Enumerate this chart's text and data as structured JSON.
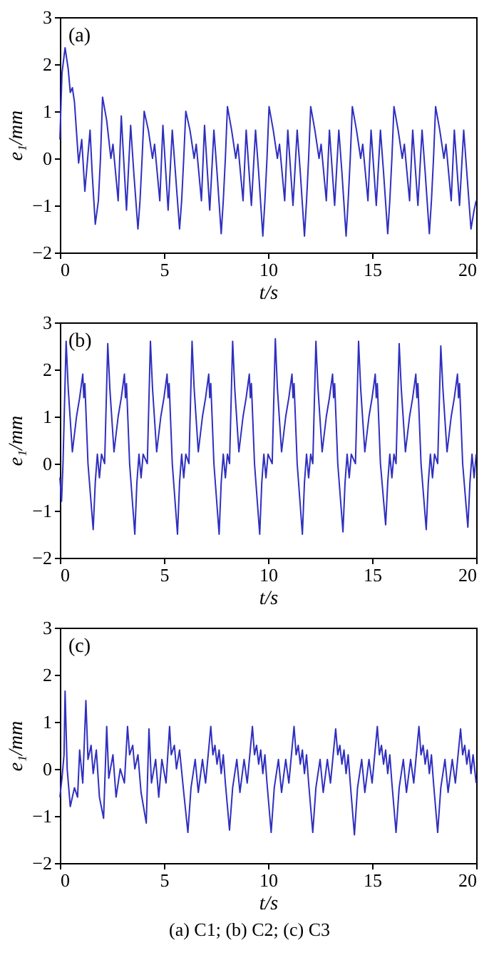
{
  "chart_data": [
    {
      "type": "line",
      "xlabel": "t/s",
      "ylabel": "e₁/mm",
      "annotations": [
        "(a)"
      ],
      "xlim": [
        0,
        20
      ],
      "ylim": [
        -2,
        3
      ],
      "xticks": [
        0,
        5,
        10,
        15,
        20
      ],
      "yticks": [
        -2,
        -1,
        0,
        1,
        2,
        3
      ],
      "grid": false,
      "x": [
        0,
        0.1,
        0.25,
        0.4,
        0.5,
        0.6,
        0.7,
        0.9,
        1.05,
        1.2,
        1.45,
        1.55,
        1.7,
        1.85,
        1.95,
        2.05,
        2.25,
        2.45,
        2.55,
        2.8,
        2.95,
        3.2,
        3.4,
        3.55,
        3.75,
        3.85,
        3.95,
        4.05,
        4.25,
        4.45,
        4.55,
        4.8,
        4.95,
        5.2,
        5.4,
        5.55,
        5.75,
        5.85,
        5.95,
        6.05,
        6.25,
        6.45,
        6.55,
        6.8,
        6.95,
        7.2,
        7.4,
        7.55,
        7.75,
        7.85,
        7.95,
        8.05,
        8.25,
        8.45,
        8.55,
        8.8,
        8.95,
        9.2,
        9.4,
        9.55,
        9.75,
        9.85,
        9.95,
        10.05,
        10.25,
        10.45,
        10.55,
        10.8,
        10.95,
        11.2,
        11.4,
        11.55,
        11.75,
        11.85,
        11.95,
        12.05,
        12.25,
        12.45,
        12.55,
        12.8,
        12.95,
        13.2,
        13.4,
        13.55,
        13.75,
        13.85,
        13.95,
        14.05,
        14.25,
        14.45,
        14.55,
        14.8,
        14.95,
        15.2,
        15.4,
        15.55,
        15.75,
        15.85,
        15.95,
        16.05,
        16.25,
        16.45,
        16.55,
        16.8,
        16.95,
        17.2,
        17.4,
        17.55,
        17.75,
        17.85,
        17.95,
        18.05,
        18.25,
        18.45,
        18.55,
        18.8,
        18.95,
        19.2,
        19.4,
        19.55,
        19.75,
        19.9,
        20
      ],
      "series": [
        {
          "color": "#2f2fc0",
          "values": [
            0.4,
            1.8,
            2.35,
            1.9,
            1.4,
            1.5,
            1.2,
            -0.1,
            0.4,
            -0.7,
            0.6,
            -0.3,
            -1.4,
            -0.9,
            0,
            1.3,
            0.8,
            0,
            0.3,
            -0.9,
            0.9,
            -1.1,
            0.7,
            -0.3,
            -1.5,
            -0.9,
            0,
            1.0,
            0.6,
            0,
            0.3,
            -0.9,
            0.7,
            -1.1,
            0.6,
            -0.3,
            -1.5,
            -0.9,
            0,
            1.0,
            0.6,
            0,
            0.3,
            -0.9,
            0.7,
            -1.1,
            0.6,
            -0.3,
            -1.6,
            -0.9,
            0,
            1.1,
            0.6,
            0,
            0.3,
            -0.9,
            0.6,
            -1.0,
            0.6,
            -0.3,
            -1.65,
            -0.9,
            0,
            1.1,
            0.6,
            0,
            0.3,
            -0.9,
            0.6,
            -1.0,
            0.6,
            -0.3,
            -1.65,
            -0.9,
            0,
            1.1,
            0.6,
            0,
            0.3,
            -0.9,
            0.6,
            -1.0,
            0.6,
            -0.3,
            -1.65,
            -0.9,
            0,
            1.1,
            0.6,
            0,
            0.3,
            -0.9,
            0.6,
            -1.0,
            0.6,
            -0.3,
            -1.6,
            -0.9,
            0,
            1.1,
            0.6,
            0,
            0.3,
            -0.9,
            0.6,
            -1.0,
            0.6,
            -0.3,
            -1.6,
            -0.9,
            0,
            1.1,
            0.6,
            0,
            0.3,
            -0.9,
            0.6,
            -1.0,
            0.6,
            -0.3,
            -1.5,
            -1.1,
            -0.9
          ]
        }
      ]
    },
    {
      "type": "line",
      "xlabel": "t/s",
      "ylabel": "e₁/mm",
      "annotations": [
        "(b)"
      ],
      "xlim": [
        0,
        20
      ],
      "ylim": [
        -2,
        3
      ],
      "xticks": [
        0,
        5,
        10,
        15,
        20
      ],
      "yticks": [
        -2,
        -1,
        0,
        1,
        2,
        3
      ],
      "grid": false,
      "x": [
        0,
        0.08,
        0.15,
        0.3,
        0.4,
        0.6,
        0.8,
        0.95,
        1.1,
        1.15,
        1.2,
        1.35,
        1.6,
        1.7,
        1.8,
        1.9,
        2.0,
        2.15,
        2.3,
        2.4,
        2.6,
        2.8,
        2.95,
        3.1,
        3.15,
        3.2,
        3.35,
        3.6,
        3.7,
        3.8,
        3.9,
        4.0,
        4.2,
        4.35,
        4.45,
        4.65,
        4.85,
        5.0,
        5.15,
        5.2,
        5.25,
        5.4,
        5.65,
        5.75,
        5.85,
        5.95,
        6.05,
        6.2,
        6.35,
        6.45,
        6.65,
        6.85,
        7.0,
        7.15,
        7.2,
        7.25,
        7.4,
        7.65,
        7.75,
        7.85,
        7.95,
        8.05,
        8.15,
        8.3,
        8.4,
        8.6,
        8.8,
        8.95,
        9.1,
        9.15,
        9.2,
        9.35,
        9.6,
        9.7,
        9.8,
        9.9,
        10.0,
        10.2,
        10.35,
        10.45,
        10.65,
        10.85,
        11.0,
        11.15,
        11.2,
        11.25,
        11.4,
        11.65,
        11.75,
        11.85,
        11.95,
        12.05,
        12.15,
        12.3,
        12.4,
        12.6,
        12.8,
        12.95,
        13.1,
        13.15,
        13.2,
        13.35,
        13.6,
        13.7,
        13.8,
        13.9,
        14.0,
        14.2,
        14.35,
        14.45,
        14.65,
        14.85,
        15.0,
        15.15,
        15.2,
        15.25,
        15.4,
        15.65,
        15.75,
        15.85,
        15.95,
        16.05,
        16.15,
        16.3,
        16.4,
        16.6,
        16.8,
        16.95,
        17.1,
        17.15,
        17.2,
        17.35,
        17.6,
        17.7,
        17.8,
        17.9,
        18.0,
        18.15,
        18.3,
        18.4,
        18.6,
        18.8,
        18.95,
        19.1,
        19.15,
        19.2,
        19.35,
        19.6,
        19.7,
        19.8,
        19.9,
        20.0
      ],
      "series": [
        {
          "color": "#2f2fc0",
          "values": [
            -0.3,
            -0.8,
            0,
            2.6,
            1.6,
            0.25,
            1.0,
            1.4,
            1.9,
            1.4,
            1.7,
            0,
            -1.4,
            -0.4,
            0.2,
            -0.3,
            0.2,
            0,
            2.55,
            1.6,
            0.25,
            1.0,
            1.4,
            1.9,
            1.4,
            1.7,
            0,
            -1.5,
            -0.4,
            0.2,
            -0.3,
            0.2,
            0,
            2.6,
            1.6,
            0.25,
            1.0,
            1.4,
            1.9,
            1.4,
            1.7,
            0,
            -1.5,
            -0.4,
            0.2,
            -0.3,
            0.2,
            0,
            2.6,
            1.6,
            0.25,
            1.0,
            1.4,
            1.9,
            1.4,
            1.7,
            0,
            -1.5,
            -0.4,
            0.2,
            -0.3,
            0.2,
            0,
            2.6,
            1.6,
            0.25,
            1.0,
            1.4,
            1.9,
            1.4,
            1.7,
            0,
            -1.5,
            -0.4,
            0.2,
            -0.3,
            0.2,
            0,
            2.65,
            1.6,
            0.25,
            1.0,
            1.4,
            1.9,
            1.4,
            1.7,
            0,
            -1.5,
            -0.4,
            0.2,
            -0.3,
            0.2,
            0,
            2.6,
            1.6,
            0.25,
            1.0,
            1.4,
            1.9,
            1.4,
            1.7,
            0,
            -1.45,
            -0.4,
            0.2,
            -0.3,
            0.2,
            0,
            2.6,
            1.6,
            0.25,
            1.0,
            1.4,
            1.9,
            1.4,
            1.7,
            0,
            -1.3,
            -0.4,
            0.2,
            -0.3,
            0.2,
            0,
            2.55,
            1.6,
            0.25,
            1.0,
            1.4,
            1.9,
            1.4,
            1.7,
            0,
            -1.4,
            -0.4,
            0.2,
            -0.3,
            0.2,
            0,
            2.5,
            1.6,
            0.25,
            1.0,
            1.4,
            1.9,
            1.4,
            1.7,
            0,
            -1.35,
            -0.4,
            0.2,
            -0.3,
            0.2
          ]
        }
      ]
    },
    {
      "type": "line",
      "xlabel": "t/s",
      "ylabel": "e₁/mm",
      "annotations": [
        "(c)",
        "(a) C1; (b) C2; (c) C3"
      ],
      "xlim": [
        0,
        20
      ],
      "ylim": [
        -2,
        3
      ],
      "xticks": [
        0,
        5,
        10,
        15,
        20
      ],
      "yticks": [
        -2,
        -1,
        0,
        1,
        2,
        3
      ],
      "grid": false,
      "x": [
        0,
        0.1,
        0.2,
        0.25,
        0.35,
        0.5,
        0.7,
        0.85,
        0.95,
        1.1,
        1.25,
        1.35,
        1.5,
        1.6,
        1.75,
        1.9,
        2.1,
        2.25,
        2.35,
        2.55,
        2.7,
        2.9,
        3.1,
        3.25,
        3.35,
        3.5,
        3.6,
        3.75,
        3.9,
        4.15,
        4.28,
        4.4,
        4.6,
        4.75,
        4.9,
        5.1,
        5.27,
        5.35,
        5.5,
        5.6,
        5.75,
        5.95,
        6.15,
        6.3,
        6.5,
        6.65,
        6.85,
        7.0,
        7.25,
        7.35,
        7.45,
        7.55,
        7.65,
        7.75,
        7.85,
        7.95,
        8.15,
        8.3,
        8.5,
        8.65,
        8.85,
        9.0,
        9.25,
        9.35,
        9.45,
        9.55,
        9.65,
        9.75,
        9.85,
        9.95,
        10.15,
        10.3,
        10.5,
        10.65,
        10.85,
        11.0,
        11.25,
        11.35,
        11.45,
        11.55,
        11.65,
        11.75,
        11.85,
        11.95,
        12.15,
        12.3,
        12.5,
        12.65,
        12.85,
        13.0,
        13.25,
        13.35,
        13.45,
        13.55,
        13.65,
        13.75,
        13.85,
        13.95,
        14.15,
        14.3,
        14.5,
        14.65,
        14.85,
        15.0,
        15.25,
        15.35,
        15.45,
        15.55,
        15.65,
        15.75,
        15.85,
        15.95,
        16.15,
        16.3,
        16.5,
        16.65,
        16.85,
        17.0,
        17.25,
        17.35,
        17.45,
        17.55,
        17.65,
        17.75,
        17.85,
        17.95,
        18.15,
        18.3,
        18.5,
        18.65,
        18.85,
        19.0,
        19.25,
        19.35,
        19.45,
        19.55,
        19.65,
        19.75,
        19.85,
        20
      ],
      "series": [
        {
          "color": "#2f2fc0",
          "values": [
            -0.6,
            -0.2,
            0.3,
            1.65,
            0,
            -0.8,
            -0.4,
            -0.6,
            0.4,
            -0.3,
            1.45,
            0.2,
            0.5,
            -0.1,
            0.4,
            -0.6,
            -1.05,
            0.9,
            -0.2,
            0.3,
            -0.6,
            0,
            -0.3,
            0.9,
            0.3,
            0.5,
            0,
            0.3,
            -0.5,
            -1.15,
            0.85,
            -0.3,
            0.2,
            -0.6,
            0.2,
            -0.3,
            0.9,
            0.3,
            0.5,
            0,
            0.4,
            -0.5,
            -1.35,
            -0.4,
            0.2,
            -0.5,
            0.2,
            -0.3,
            0.9,
            0.3,
            0.5,
            0.1,
            0.4,
            -0.1,
            0.3,
            -0.3,
            -1.3,
            -0.4,
            0.2,
            -0.5,
            0.2,
            -0.3,
            0.9,
            0.3,
            0.5,
            0.1,
            0.4,
            -0.1,
            0.3,
            -0.3,
            -1.35,
            -0.4,
            0.2,
            -0.5,
            0.2,
            -0.3,
            0.9,
            0.3,
            0.5,
            0.1,
            0.4,
            -0.1,
            0.3,
            -0.3,
            -1.35,
            -0.4,
            0.2,
            -0.5,
            0.2,
            -0.3,
            0.85,
            0.3,
            0.5,
            0.1,
            0.4,
            -0.1,
            0.3,
            -0.3,
            -1.4,
            -0.4,
            0.2,
            -0.5,
            0.2,
            -0.3,
            0.9,
            0.3,
            0.5,
            0.1,
            0.4,
            -0.1,
            0.3,
            -0.3,
            -1.35,
            -0.4,
            0.2,
            -0.5,
            0.2,
            -0.3,
            0.9,
            0.3,
            0.5,
            0.1,
            0.4,
            -0.1,
            0.3,
            -0.3,
            -1.35,
            -0.4,
            0.2,
            -0.5,
            0.2,
            -0.3,
            0.85,
            0.3,
            0.5,
            0.1,
            0.4,
            -0.1,
            0.3,
            -0.3
          ]
        }
      ]
    }
  ]
}
